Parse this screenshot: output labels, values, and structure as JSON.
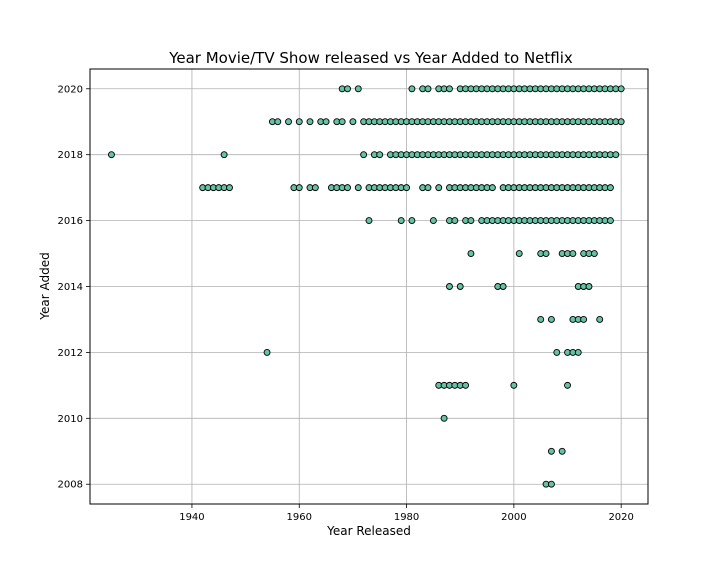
{
  "chart_data": {
    "type": "scatter",
    "title": "Year Movie/TV Show released vs Year Added to Netflix",
    "xlabel": "Year Released",
    "ylabel": "Year Added",
    "xlim": [
      1921,
      2025
    ],
    "ylim": [
      2007.4,
      2020.6
    ],
    "xticks": [
      1940,
      1960,
      1980,
      2000,
      2020
    ],
    "yticks": [
      2008,
      2010,
      2012,
      2014,
      2016,
      2018,
      2020
    ],
    "grid": true,
    "colors": {
      "marker_fill": "#66c2a5",
      "marker_edge": "#000000",
      "grid": "#b0b0b0"
    },
    "series": [
      {
        "points": [
          [
            2006,
            2008
          ],
          [
            2007,
            2008
          ],
          [
            2007,
            2009
          ],
          [
            2009,
            2009
          ],
          [
            1987,
            2010
          ],
          [
            1986,
            2011
          ],
          [
            1987,
            2011
          ],
          [
            1988,
            2011
          ],
          [
            1989,
            2011
          ],
          [
            1990,
            2011
          ],
          [
            1991,
            2011
          ],
          [
            2000,
            2011
          ],
          [
            2010,
            2011
          ],
          [
            1954,
            2012
          ],
          [
            2008,
            2012
          ],
          [
            2010,
            2012
          ],
          [
            2011,
            2012
          ],
          [
            2012,
            2012
          ],
          [
            2005,
            2013
          ],
          [
            2007,
            2013
          ],
          [
            2011,
            2013
          ],
          [
            2012,
            2013
          ],
          [
            2013,
            2013
          ],
          [
            2016,
            2013
          ],
          [
            1988,
            2014
          ],
          [
            1990,
            2014
          ],
          [
            1997,
            2014
          ],
          [
            1998,
            2014
          ],
          [
            2012,
            2014
          ],
          [
            2013,
            2014
          ],
          [
            2014,
            2014
          ],
          [
            1992,
            2015
          ],
          [
            2001,
            2015
          ],
          [
            2005,
            2015
          ],
          [
            2006,
            2015
          ],
          [
            2009,
            2015
          ],
          [
            2010,
            2015
          ],
          [
            2011,
            2015
          ],
          [
            2013,
            2015
          ],
          [
            2014,
            2015
          ],
          [
            2015,
            2015
          ],
          [
            1973,
            2016
          ],
          [
            1979,
            2016
          ],
          [
            1981,
            2016
          ],
          [
            1985,
            2016
          ],
          [
            1988,
            2016
          ],
          [
            1989,
            2016
          ],
          [
            1991,
            2016
          ],
          [
            1992,
            2016
          ],
          [
            1994,
            2016
          ],
          [
            1995,
            2016
          ],
          [
            1996,
            2016
          ],
          [
            1997,
            2016
          ],
          [
            1998,
            2016
          ],
          [
            1999,
            2016
          ],
          [
            2000,
            2016
          ],
          [
            2001,
            2016
          ],
          [
            2002,
            2016
          ],
          [
            2003,
            2016
          ],
          [
            2004,
            2016
          ],
          [
            2005,
            2016
          ],
          [
            2006,
            2016
          ],
          [
            2007,
            2016
          ],
          [
            2008,
            2016
          ],
          [
            2009,
            2016
          ],
          [
            2010,
            2016
          ],
          [
            2011,
            2016
          ],
          [
            2012,
            2016
          ],
          [
            2013,
            2016
          ],
          [
            2014,
            2016
          ],
          [
            2015,
            2016
          ],
          [
            2016,
            2016
          ],
          [
            2017,
            2016
          ],
          [
            2018,
            2016
          ],
          [
            1942,
            2017
          ],
          [
            1943,
            2017
          ],
          [
            1944,
            2017
          ],
          [
            1945,
            2017
          ],
          [
            1946,
            2017
          ],
          [
            1947,
            2017
          ],
          [
            1959,
            2017
          ],
          [
            1960,
            2017
          ],
          [
            1962,
            2017
          ],
          [
            1963,
            2017
          ],
          [
            1966,
            2017
          ],
          [
            1967,
            2017
          ],
          [
            1968,
            2017
          ],
          [
            1969,
            2017
          ],
          [
            1971,
            2017
          ],
          [
            1973,
            2017
          ],
          [
            1974,
            2017
          ],
          [
            1975,
            2017
          ],
          [
            1976,
            2017
          ],
          [
            1977,
            2017
          ],
          [
            1978,
            2017
          ],
          [
            1979,
            2017
          ],
          [
            1980,
            2017
          ],
          [
            1983,
            2017
          ],
          [
            1984,
            2017
          ],
          [
            1986,
            2017
          ],
          [
            1988,
            2017
          ],
          [
            1989,
            2017
          ],
          [
            1990,
            2017
          ],
          [
            1991,
            2017
          ],
          [
            1992,
            2017
          ],
          [
            1993,
            2017
          ],
          [
            1994,
            2017
          ],
          [
            1995,
            2017
          ],
          [
            1996,
            2017
          ],
          [
            1998,
            2017
          ],
          [
            1999,
            2017
          ],
          [
            2000,
            2017
          ],
          [
            2001,
            2017
          ],
          [
            2002,
            2017
          ],
          [
            2003,
            2017
          ],
          [
            2004,
            2017
          ],
          [
            2005,
            2017
          ],
          [
            2006,
            2017
          ],
          [
            2007,
            2017
          ],
          [
            2008,
            2017
          ],
          [
            2009,
            2017
          ],
          [
            2010,
            2017
          ],
          [
            2011,
            2017
          ],
          [
            2012,
            2017
          ],
          [
            2013,
            2017
          ],
          [
            2014,
            2017
          ],
          [
            2015,
            2017
          ],
          [
            2016,
            2017
          ],
          [
            2017,
            2017
          ],
          [
            2018,
            2017
          ],
          [
            1925,
            2018
          ],
          [
            1946,
            2018
          ],
          [
            1972,
            2018
          ],
          [
            1974,
            2018
          ],
          [
            1975,
            2018
          ],
          [
            1977,
            2018
          ],
          [
            1978,
            2018
          ],
          [
            1979,
            2018
          ],
          [
            1980,
            2018
          ],
          [
            1981,
            2018
          ],
          [
            1982,
            2018
          ],
          [
            1983,
            2018
          ],
          [
            1984,
            2018
          ],
          [
            1985,
            2018
          ],
          [
            1986,
            2018
          ],
          [
            1987,
            2018
          ],
          [
            1988,
            2018
          ],
          [
            1989,
            2018
          ],
          [
            1990,
            2018
          ],
          [
            1991,
            2018
          ],
          [
            1992,
            2018
          ],
          [
            1993,
            2018
          ],
          [
            1994,
            2018
          ],
          [
            1995,
            2018
          ],
          [
            1996,
            2018
          ],
          [
            1997,
            2018
          ],
          [
            1998,
            2018
          ],
          [
            1999,
            2018
          ],
          [
            2000,
            2018
          ],
          [
            2001,
            2018
          ],
          [
            2002,
            2018
          ],
          [
            2003,
            2018
          ],
          [
            2004,
            2018
          ],
          [
            2005,
            2018
          ],
          [
            2006,
            2018
          ],
          [
            2007,
            2018
          ],
          [
            2008,
            2018
          ],
          [
            2009,
            2018
          ],
          [
            2010,
            2018
          ],
          [
            2011,
            2018
          ],
          [
            2012,
            2018
          ],
          [
            2013,
            2018
          ],
          [
            2014,
            2018
          ],
          [
            2015,
            2018
          ],
          [
            2016,
            2018
          ],
          [
            2017,
            2018
          ],
          [
            2018,
            2018
          ],
          [
            2019,
            2018
          ],
          [
            1955,
            2019
          ],
          [
            1956,
            2019
          ],
          [
            1958,
            2019
          ],
          [
            1960,
            2019
          ],
          [
            1962,
            2019
          ],
          [
            1964,
            2019
          ],
          [
            1965,
            2019
          ],
          [
            1967,
            2019
          ],
          [
            1968,
            2019
          ],
          [
            1970,
            2019
          ],
          [
            1972,
            2019
          ],
          [
            1973,
            2019
          ],
          [
            1974,
            2019
          ],
          [
            1975,
            2019
          ],
          [
            1976,
            2019
          ],
          [
            1977,
            2019
          ],
          [
            1978,
            2019
          ],
          [
            1979,
            2019
          ],
          [
            1980,
            2019
          ],
          [
            1981,
            2019
          ],
          [
            1982,
            2019
          ],
          [
            1983,
            2019
          ],
          [
            1984,
            2019
          ],
          [
            1985,
            2019
          ],
          [
            1986,
            2019
          ],
          [
            1987,
            2019
          ],
          [
            1988,
            2019
          ],
          [
            1989,
            2019
          ],
          [
            1990,
            2019
          ],
          [
            1991,
            2019
          ],
          [
            1992,
            2019
          ],
          [
            1993,
            2019
          ],
          [
            1994,
            2019
          ],
          [
            1995,
            2019
          ],
          [
            1996,
            2019
          ],
          [
            1997,
            2019
          ],
          [
            1998,
            2019
          ],
          [
            1999,
            2019
          ],
          [
            2000,
            2019
          ],
          [
            2001,
            2019
          ],
          [
            2002,
            2019
          ],
          [
            2003,
            2019
          ],
          [
            2004,
            2019
          ],
          [
            2005,
            2019
          ],
          [
            2006,
            2019
          ],
          [
            2007,
            2019
          ],
          [
            2008,
            2019
          ],
          [
            2009,
            2019
          ],
          [
            2010,
            2019
          ],
          [
            2011,
            2019
          ],
          [
            2012,
            2019
          ],
          [
            2013,
            2019
          ],
          [
            2014,
            2019
          ],
          [
            2015,
            2019
          ],
          [
            2016,
            2019
          ],
          [
            2017,
            2019
          ],
          [
            2018,
            2019
          ],
          [
            2019,
            2019
          ],
          [
            2020,
            2019
          ],
          [
            1968,
            2020
          ],
          [
            1969,
            2020
          ],
          [
            1971,
            2020
          ],
          [
            1981,
            2020
          ],
          [
            1983,
            2020
          ],
          [
            1984,
            2020
          ],
          [
            1986,
            2020
          ],
          [
            1987,
            2020
          ],
          [
            1988,
            2020
          ],
          [
            1990,
            2020
          ],
          [
            1991,
            2020
          ],
          [
            1992,
            2020
          ],
          [
            1993,
            2020
          ],
          [
            1994,
            2020
          ],
          [
            1995,
            2020
          ],
          [
            1996,
            2020
          ],
          [
            1997,
            2020
          ],
          [
            1998,
            2020
          ],
          [
            1999,
            2020
          ],
          [
            2000,
            2020
          ],
          [
            2001,
            2020
          ],
          [
            2002,
            2020
          ],
          [
            2003,
            2020
          ],
          [
            2004,
            2020
          ],
          [
            2005,
            2020
          ],
          [
            2006,
            2020
          ],
          [
            2007,
            2020
          ],
          [
            2008,
            2020
          ],
          [
            2009,
            2020
          ],
          [
            2010,
            2020
          ],
          [
            2011,
            2020
          ],
          [
            2012,
            2020
          ],
          [
            2013,
            2020
          ],
          [
            2014,
            2020
          ],
          [
            2015,
            2020
          ],
          [
            2016,
            2020
          ],
          [
            2017,
            2020
          ],
          [
            2018,
            2020
          ],
          [
            2019,
            2020
          ],
          [
            2020,
            2020
          ]
        ]
      }
    ]
  }
}
